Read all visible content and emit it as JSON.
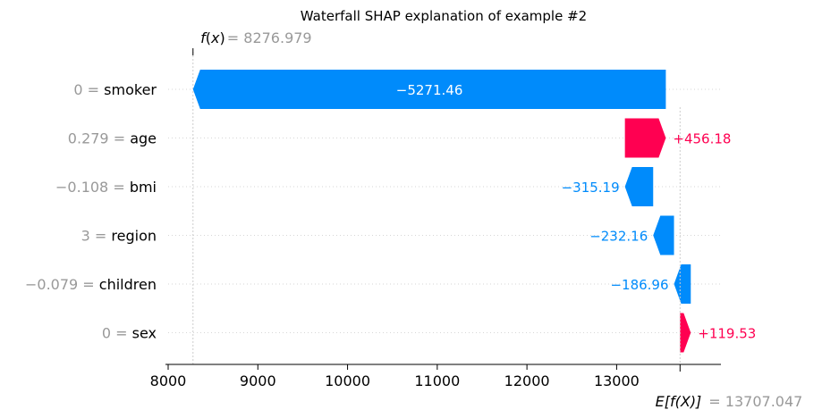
{
  "chart_data": {
    "type": "waterfall",
    "title": "Waterfall SHAP explanation of example #2",
    "fx": {
      "label_fn": "f",
      "label_arg": "x",
      "value": "8276.979",
      "num": 8276.979
    },
    "efx": {
      "label_fn": "E[f(X)]",
      "value": "13707.047",
      "num": 13707.047
    },
    "features": [
      {
        "value": "0",
        "name": "smoker",
        "shap": -5271.46,
        "label": "−5271.46"
      },
      {
        "value": "0.279",
        "name": "age",
        "shap": 456.18,
        "label": "+456.18"
      },
      {
        "value": "−0.108",
        "name": "bmi",
        "shap": -315.19,
        "label": "−315.19"
      },
      {
        "value": "3",
        "name": "region",
        "shap": -232.16,
        "label": "−232.16"
      },
      {
        "value": "−0.079",
        "name": "children",
        "shap": -186.96,
        "label": "−186.96"
      },
      {
        "value": "0",
        "name": "sex",
        "shap": 119.53,
        "label": "+119.53"
      }
    ],
    "xticks": [
      8000,
      9000,
      10000,
      11000,
      12000,
      13000
    ],
    "xlim": [
      8000,
      13000
    ],
    "colors": {
      "positive": "#ff0051",
      "negative": "#008bfb",
      "grid": "#cccccc",
      "muted": "#999999"
    }
  }
}
